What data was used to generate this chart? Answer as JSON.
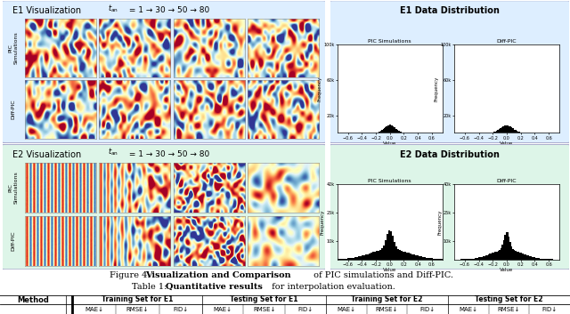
{
  "e1_title": "E1 Visualization",
  "e1_time_vals": " = 1 → 30 → 50 → 80",
  "e2_title": "E2 Visualization",
  "e2_time_vals": " = 1 → 30 → 50 → 80",
  "e1_dist_title": "E1 Data Distribution",
  "e2_dist_title": "E2 Data Distribution",
  "pic_sim_label": "PIC Simulations",
  "diff_pic_dist_label": "Diff-PIC",
  "e1_box_color": "#ddeeff",
  "e2_box_color": "#ddf5e8",
  "e1_dist_box_color": "#ddeeff",
  "e2_dist_box_color": "#ddf5e8",
  "bg_color": "#ffffff",
  "fig_cap_pre": "Figure 4: ",
  "fig_cap_bold": "Visualization and Comparison",
  "fig_cap_post": " of PIC simulations and Diff-PIC.",
  "tbl_cap_pre": "Table 1: ",
  "tbl_cap_bold": "Quantitative results",
  "tbl_cap_post": " for interpolation evaluation.",
  "section_headers": [
    "Training Set for E1",
    "Testing Set for E1",
    "Training Set for E2",
    "Testing Set for E2"
  ],
  "sub_headers": [
    "MAE↓",
    "RMSE↓",
    "FID↓"
  ]
}
